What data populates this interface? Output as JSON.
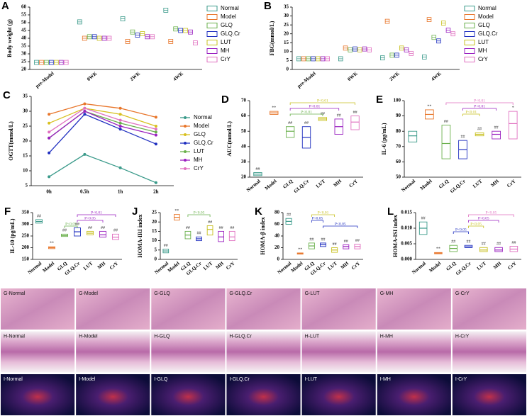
{
  "chart_data": [
    {
      "type": "box",
      "panel": "A",
      "y_label": "Body weight (g)",
      "categories": [
        "pre-Model",
        "0WK",
        "2WK",
        "4WK"
      ],
      "ylim": [
        20,
        60
      ],
      "yticks": [
        20,
        25,
        30,
        35,
        40,
        45,
        50,
        55,
        60
      ],
      "series": [
        {
          "name": "Normal",
          "color": "#3a9a8a",
          "values": [
            24.5,
            50.5,
            52.5,
            58
          ]
        },
        {
          "name": "Model",
          "color": "#e8762b",
          "values": [
            24.5,
            40,
            38,
            38
          ]
        },
        {
          "name": "GLQ",
          "color": "#6ab04c",
          "values": [
            24.5,
            41,
            44,
            46
          ]
        },
        {
          "name": "GLQ.Cr",
          "color": "#2030c0",
          "values": [
            24.5,
            41,
            42,
            45
          ]
        },
        {
          "name": "LUT",
          "color": "#c8c020",
          "values": [
            24.5,
            40,
            43,
            45
          ]
        },
        {
          "name": "MH",
          "color": "#9a20c0",
          "values": [
            24.5,
            40,
            41,
            44
          ]
        },
        {
          "name": "CrY",
          "color": "#e070c0",
          "values": [
            24.5,
            40,
            41,
            37
          ]
        }
      ]
    },
    {
      "type": "box",
      "panel": "B",
      "y_label": "FBG(mmol/L)",
      "categories": [
        "pre-Model",
        "0WK",
        "2WK",
        "4WK"
      ],
      "ylim": [
        0,
        35
      ],
      "yticks": [
        0,
        5,
        10,
        15,
        20,
        25,
        30,
        35
      ],
      "series": [
        {
          "name": "Normal",
          "color": "#3a9a8a",
          "values": [
            6,
            6,
            6.5,
            7
          ]
        },
        {
          "name": "Model",
          "color": "#e8762b",
          "values": [
            6,
            12,
            27,
            28
          ]
        },
        {
          "name": "GLQ",
          "color": "#6ab04c",
          "values": [
            6,
            11,
            8,
            18
          ]
        },
        {
          "name": "GLQ.Cr",
          "color": "#2030c0",
          "values": [
            6,
            11.5,
            8,
            16
          ]
        },
        {
          "name": "LUT",
          "color": "#c8c020",
          "values": [
            6,
            11,
            12,
            26
          ]
        },
        {
          "name": "MH",
          "color": "#9a20c0",
          "values": [
            6,
            11.5,
            11,
            22
          ]
        },
        {
          "name": "CrY",
          "color": "#e070c0",
          "values": [
            6,
            11,
            9,
            20
          ]
        }
      ]
    },
    {
      "type": "line",
      "panel": "C",
      "y_label": "OGTT(mmol/L)",
      "categories": [
        "0h",
        "0.5h",
        "1h",
        "2h"
      ],
      "ylim": [
        5,
        35
      ],
      "yticks": [
        5,
        10,
        15,
        20,
        25,
        30,
        35
      ],
      "series": [
        {
          "name": "Normal",
          "color": "#3a9a8a",
          "values": [
            8,
            15.5,
            11,
            6
          ]
        },
        {
          "name": "Model",
          "color": "#e8762b",
          "values": [
            29,
            32.5,
            31,
            28
          ]
        },
        {
          "name": "GLQ",
          "color": "#d8c020",
          "values": [
            26,
            31,
            29,
            25
          ]
        },
        {
          "name": "GLQ.Cr",
          "color": "#2030c0",
          "values": [
            16,
            29,
            24,
            19
          ]
        },
        {
          "name": "LUT",
          "color": "#6ab04c",
          "values": [
            21,
            30,
            26,
            23
          ]
        },
        {
          "name": "MH",
          "color": "#9a20c0",
          "values": [
            21,
            30,
            25,
            22
          ]
        },
        {
          "name": "CrY",
          "color": "#e070c0",
          "values": [
            23,
            31,
            27,
            24
          ]
        }
      ]
    },
    {
      "type": "box",
      "panel": "D",
      "y_label": "AUC(mmol/L)",
      "categories": [
        "Normal",
        "Model",
        "GLQ",
        "GLQ.Cr",
        "LUT",
        "MH",
        "CrY"
      ],
      "colors": [
        "#3a9a8a",
        "#e8762b",
        "#6ab04c",
        "#2030c0",
        "#c8c020",
        "#9a20c0",
        "#e070c0"
      ],
      "ylim": [
        20,
        70
      ],
      "yticks": [
        20,
        30,
        40,
        50,
        60,
        70
      ],
      "values": [
        22,
        62,
        50,
        46,
        58,
        53,
        56
      ],
      "low": [
        21,
        61,
        46,
        39,
        57,
        48,
        51
      ],
      "high": [
        23,
        63,
        53,
        53,
        59,
        58,
        60
      ],
      "sig": [
        "##",
        "**",
        "##",
        "##",
        "##",
        "##",
        "##"
      ],
      "brackets": [
        {
          "from": 2,
          "to": 6,
          "label": "P<0.01",
          "color": "#c8c020"
        },
        {
          "from": 2,
          "to": 5,
          "label": "P<0.01",
          "color": "#9a20c0"
        },
        {
          "from": 2,
          "to": 4,
          "label": "P<0.01",
          "color": "#6ab04c"
        }
      ]
    },
    {
      "type": "box",
      "panel": "E",
      "y_label": "IL-6 (pg/mL)",
      "categories": [
        "Normal",
        "Model",
        "GLQ",
        "GLQ.Cr",
        "LUT",
        "MH",
        "CrY"
      ],
      "colors": [
        "#3a9a8a",
        "#e8762b",
        "#6ab04c",
        "#2030c0",
        "#c8c020",
        "#9a20c0",
        "#e070c0"
      ],
      "ylim": [
        50,
        100
      ],
      "yticks": [
        50,
        60,
        70,
        80,
        90,
        100
      ],
      "values": [
        77,
        91,
        72,
        68,
        78,
        78,
        85
      ],
      "low": [
        73,
        88,
        62,
        62,
        77,
        75,
        75
      ],
      "high": [
        80,
        94,
        84,
        74,
        79,
        80,
        93
      ],
      "sig": [
        null,
        "**",
        "##",
        "##",
        "##",
        "##",
        "*"
      ],
      "brackets": [
        {
          "from": 2,
          "to": 6,
          "label": "P<0.01",
          "color": "#e070c0"
        },
        {
          "from": 3,
          "to": 5,
          "label": "P<0.01",
          "color": "#9a20c0"
        },
        {
          "from": 3,
          "to": 4,
          "label": "P<0.01",
          "color": "#c8c020"
        }
      ]
    },
    {
      "type": "box",
      "panel": "F",
      "y_label": "IL-10 (pg/mL)",
      "categories": [
        "Normal",
        "Model",
        "GLQ",
        "GLQ.Cr",
        "LUT",
        "MH",
        "CrY"
      ],
      "colors": [
        "#3a9a8a",
        "#e8762b",
        "#6ab04c",
        "#2030c0",
        "#c8c020",
        "#9a20c0",
        "#e070c0"
      ],
      "ylim": [
        150,
        350
      ],
      "yticks": [
        150,
        200,
        250,
        300,
        350
      ],
      "values": [
        312,
        200,
        252,
        268,
        262,
        255,
        245
      ],
      "low": [
        305,
        196,
        248,
        250,
        255,
        245,
        235
      ],
      "high": [
        320,
        204,
        258,
        285,
        270,
        270,
        258
      ],
      "sig": [
        "##",
        "**",
        "##",
        "##",
        "##",
        "##",
        "##"
      ],
      "brackets": [
        {
          "from": 3,
          "to": 6,
          "label": "P<0.01",
          "color": "#9a20c0"
        },
        {
          "from": 3,
          "to": 5,
          "label": "P<0.05",
          "color": "#9a20c0"
        },
        {
          "from": 2,
          "to": 3,
          "label": "P<0.05",
          "color": "#6ab04c"
        }
      ]
    },
    {
      "type": "box",
      "panel": "J",
      "y_label": "HOMA-IRI index",
      "categories": [
        "Normal",
        "Model",
        "GLQ",
        "GLQ.Cr",
        "LUT",
        "MH",
        "CrY"
      ],
      "colors": [
        "#3a9a8a",
        "#e8762b",
        "#6ab04c",
        "#2030c0",
        "#c8c020",
        "#9a20c0",
        "#e070c0"
      ],
      "ylim": [
        0,
        25
      ],
      "yticks": [
        0,
        5,
        10,
        15,
        20,
        25
      ],
      "values": [
        4.5,
        22.5,
        13,
        11,
        16,
        12,
        12
      ],
      "low": [
        3.5,
        21,
        11,
        10,
        13,
        9.5,
        10
      ],
      "high": [
        5.5,
        24,
        15,
        12,
        18,
        15,
        15
      ],
      "sig": [
        "##",
        "**",
        "##",
        "##",
        "##",
        "##",
        "##"
      ],
      "brackets": [
        {
          "from": 2,
          "to": 4,
          "label": "P<0.05",
          "color": "#6ab04c"
        }
      ]
    },
    {
      "type": "box",
      "panel": "K",
      "y_label": "HOMA-β index",
      "categories": [
        "Normal",
        "Model",
        "GLQ",
        "GLQ.Cr",
        "LUT",
        "MH",
        "CrY"
      ],
      "colors": [
        "#3a9a8a",
        "#e8762b",
        "#6ab04c",
        "#2030c0",
        "#c8c020",
        "#9a20c0",
        "#e070c0"
      ],
      "ylim": [
        0,
        80
      ],
      "yticks": [
        0,
        20,
        40,
        60,
        80
      ],
      "values": [
        65,
        10,
        23,
        25,
        16,
        22,
        22
      ],
      "low": [
        60,
        9,
        18,
        22,
        12,
        18,
        18
      ],
      "high": [
        70,
        11,
        28,
        28,
        20,
        25,
        26
      ],
      "sig": [
        "##",
        "**",
        "##",
        "##",
        "##",
        "##",
        "##"
      ],
      "brackets": [
        {
          "from": 2,
          "to": 4,
          "label": "P<0.01",
          "color": "#c8c020"
        },
        {
          "from": 2,
          "to": 3,
          "label": "P<0.05",
          "color": "#2030c0"
        },
        {
          "from": 3,
          "to": 6,
          "label": "P<0.05",
          "color": "#2030c0"
        }
      ]
    },
    {
      "type": "box",
      "panel": "L",
      "y_label": "HOMA-ISI index",
      "categories": [
        "Normal",
        "Model",
        "GLQ",
        "GLQ.Cr",
        "LUT",
        "MH",
        "CrY"
      ],
      "colors": [
        "#3a9a8a",
        "#e8762b",
        "#6ab04c",
        "#2030c0",
        "#c8c020",
        "#9a20c0",
        "#e070c0"
      ],
      "ylim": [
        0,
        0.015
      ],
      "yticks": [
        {
          "value": 0,
          "label": "0.000"
        },
        0.005,
        {
          "value": 0.01,
          "label": "0.010"
        },
        0.015
      ],
      "values": [
        0.01,
        0.002,
        0.0035,
        0.004,
        0.003,
        0.003,
        0.0033
      ],
      "low": [
        0.008,
        0.0018,
        0.0025,
        0.0038,
        0.0025,
        0.0025,
        0.0025
      ],
      "high": [
        0.012,
        0.0022,
        0.0045,
        0.0045,
        0.0038,
        0.0038,
        0.0042
      ],
      "sig": [
        "##",
        "**",
        "##",
        "##",
        "##",
        "##",
        "##"
      ],
      "brackets": [
        {
          "from": 3,
          "to": 6,
          "label": "P<0.05",
          "color": "#e070c0"
        },
        {
          "from": 3,
          "to": 5,
          "label": "P<0.05",
          "color": "#9a20c0"
        },
        {
          "from": 3,
          "to": 4,
          "label": "P<0.05",
          "color": "#c8c020"
        },
        {
          "from": 2,
          "to": 3,
          "label": "P<0.05",
          "color": "#2030c0"
        }
      ]
    }
  ],
  "images": {
    "rows": [
      {
        "labels": [
          "G-Normal",
          "G-Model",
          "G-GLQ",
          "G-GLQ.Cr",
          "G-LUT",
          "G-MH",
          "G-CrY"
        ]
      },
      {
        "labels": [
          "H-Normal",
          "H-Model",
          "H-GLQ",
          "H-GLQ.Cr",
          "H-LUT",
          "H-MH",
          "H-CrY"
        ]
      },
      {
        "labels": [
          "I-Normal",
          "I-Model",
          "I-GLQ",
          "I-GLQ.Cr",
          "I-LUT",
          "I-MH",
          "I-CrY"
        ]
      }
    ]
  }
}
